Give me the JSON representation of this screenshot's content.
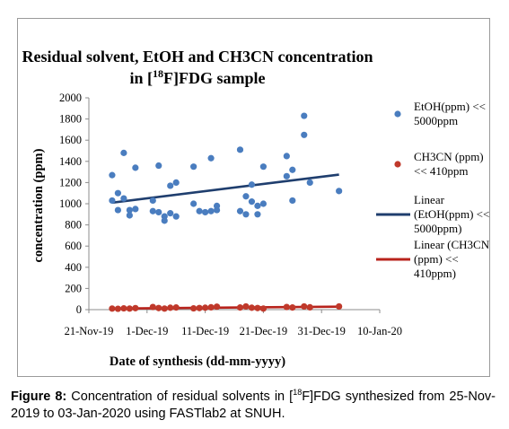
{
  "caption": {
    "label": "Figure 8:",
    "text_before": "Concentration of residual solvents in [",
    "superscript": "18",
    "text_after": "F]FDG synthesized from 25-Nov-2019 to 03-Jan-2020 using FASTlab2 at SNUH."
  },
  "chart_data": {
    "type": "scatter",
    "title_line1": "Residual solvent, EtOH and CH3CN concentration",
    "title_line2_before": "in [",
    "title_line2_sup": "18",
    "title_line2_after": "F]FDG sample",
    "xlabel": "Date of synthesis (dd-mm-yyyy)",
    "ylabel": "concentration (ppm)",
    "ylim": [
      0,
      2000
    ],
    "yticks": [
      0,
      200,
      400,
      600,
      800,
      1000,
      1200,
      1400,
      1600,
      1800,
      2000
    ],
    "xlim": [
      "2019-11-21",
      "2020-01-10"
    ],
    "xticks": [
      "21-Nov-19",
      "1-Dec-19",
      "11-Dec-19",
      "21-Dec-19",
      "31-Dec-19",
      "10-Jan-20"
    ],
    "grid": false,
    "legend_position": "right",
    "series": [
      {
        "name": "EtOH(ppm) << 5000ppm",
        "legend_lines": [
          "EtOH(ppm) <<",
          "5000ppm"
        ],
        "color": "#4a7dbf",
        "points": [
          [
            "2019-11-25",
            1270
          ],
          [
            "2019-11-25",
            1030
          ],
          [
            "2019-11-26",
            1100
          ],
          [
            "2019-11-26",
            940
          ],
          [
            "2019-11-27",
            1480
          ],
          [
            "2019-11-27",
            1050
          ],
          [
            "2019-11-28",
            890
          ],
          [
            "2019-11-28",
            940
          ],
          [
            "2019-11-29",
            1340
          ],
          [
            "2019-11-29",
            950
          ],
          [
            "2019-12-02",
            1030
          ],
          [
            "2019-12-02",
            930
          ],
          [
            "2019-12-03",
            1360
          ],
          [
            "2019-12-03",
            920
          ],
          [
            "2019-12-04",
            880
          ],
          [
            "2019-12-04",
            840
          ],
          [
            "2019-12-05",
            1170
          ],
          [
            "2019-12-05",
            910
          ],
          [
            "2019-12-06",
            1200
          ],
          [
            "2019-12-06",
            880
          ],
          [
            "2019-12-09",
            1350
          ],
          [
            "2019-12-09",
            1000
          ],
          [
            "2019-12-10",
            930
          ],
          [
            "2019-12-11",
            920
          ],
          [
            "2019-12-12",
            1430
          ],
          [
            "2019-12-12",
            930
          ],
          [
            "2019-12-13",
            980
          ],
          [
            "2019-12-13",
            940
          ],
          [
            "2019-12-17",
            1510
          ],
          [
            "2019-12-17",
            930
          ],
          [
            "2019-12-18",
            1070
          ],
          [
            "2019-12-18",
            900
          ],
          [
            "2019-12-19",
            1180
          ],
          [
            "2019-12-19",
            1020
          ],
          [
            "2019-12-20",
            980
          ],
          [
            "2019-12-20",
            900
          ],
          [
            "2019-12-21",
            1000
          ],
          [
            "2019-12-21",
            1350
          ],
          [
            "2019-12-25",
            1450
          ],
          [
            "2019-12-25",
            1260
          ],
          [
            "2019-12-26",
            1320
          ],
          [
            "2019-12-26",
            1030
          ],
          [
            "2019-12-28",
            1830
          ],
          [
            "2019-12-28",
            1650
          ],
          [
            "2019-12-29",
            1200
          ],
          [
            "2020-01-03",
            1120
          ]
        ]
      },
      {
        "name": "CH3CN (ppm) << 410ppm",
        "legend_lines": [
          "CH3CN (ppm)",
          "<< 410ppm"
        ],
        "color": "#c0392b",
        "points": [
          [
            "2019-11-25",
            10
          ],
          [
            "2019-11-26",
            8
          ],
          [
            "2019-11-27",
            12
          ],
          [
            "2019-11-28",
            10
          ],
          [
            "2019-11-29",
            14
          ],
          [
            "2019-12-02",
            25
          ],
          [
            "2019-12-03",
            15
          ],
          [
            "2019-12-04",
            10
          ],
          [
            "2019-12-05",
            18
          ],
          [
            "2019-12-06",
            20
          ],
          [
            "2019-12-09",
            12
          ],
          [
            "2019-12-10",
            15
          ],
          [
            "2019-12-11",
            18
          ],
          [
            "2019-12-12",
            22
          ],
          [
            "2019-12-13",
            28
          ],
          [
            "2019-12-17",
            20
          ],
          [
            "2019-12-18",
            30
          ],
          [
            "2019-12-19",
            18
          ],
          [
            "2019-12-20",
            15
          ],
          [
            "2019-12-21",
            10
          ],
          [
            "2019-12-25",
            25
          ],
          [
            "2019-12-26",
            20
          ],
          [
            "2019-12-28",
            30
          ],
          [
            "2019-12-29",
            22
          ],
          [
            "2020-01-03",
            30
          ]
        ]
      }
    ],
    "trendlines": [
      {
        "name": "Linear (EtOH(ppm) << 5000ppm)",
        "legend_lines": [
          "Linear",
          "(EtOH(ppm) <<",
          "5000ppm)"
        ],
        "color": "#1f3e6e",
        "from": [
          "2019-11-25",
          1010
        ],
        "to": [
          "2020-01-03",
          1275
        ]
      },
      {
        "name": "Linear (CH3CN (ppm) << 410ppm)",
        "legend_lines": [
          "Linear (CH3CN",
          "(ppm) <<",
          "410ppm)"
        ],
        "color": "#b8231c",
        "from": [
          "2019-11-25",
          10
        ],
        "to": [
          "2020-01-03",
          28
        ]
      }
    ]
  }
}
